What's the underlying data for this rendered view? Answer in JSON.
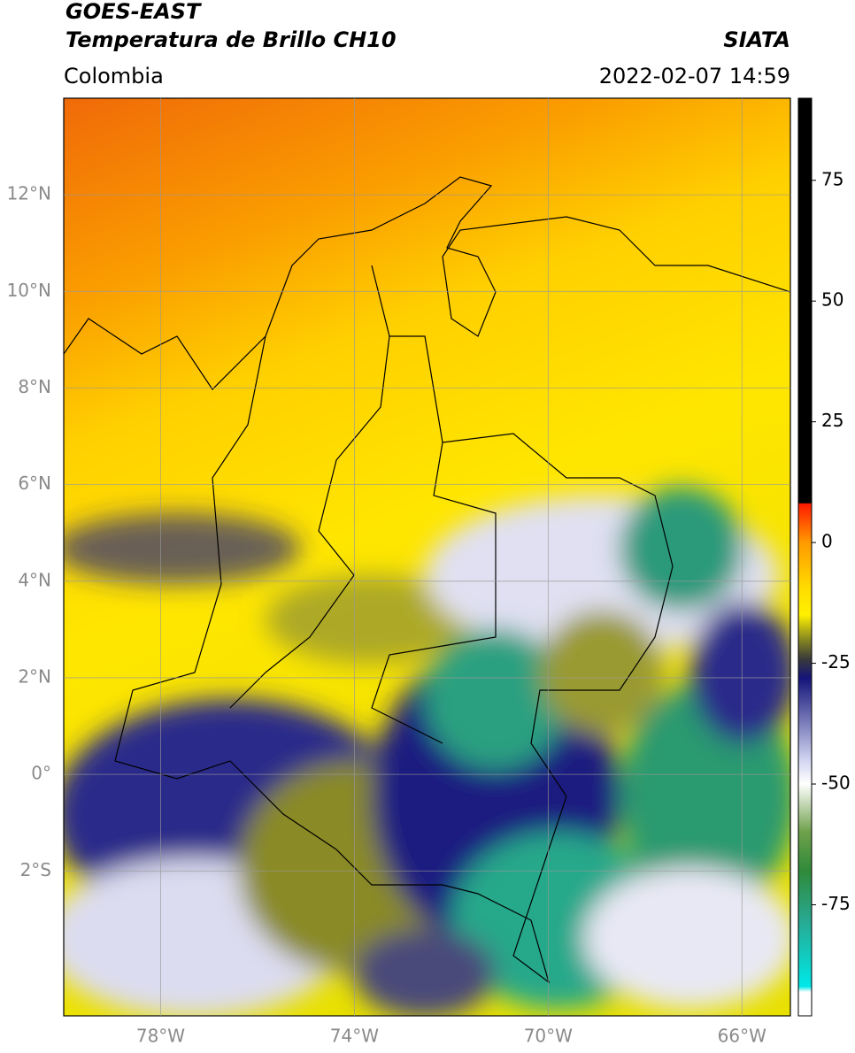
{
  "header": {
    "title": "GOES-EAST",
    "subtitle": "Temperatura de Brillo CH10",
    "region": "Colombia",
    "source": "SIATA",
    "datetime": "2022-02-07 14:59"
  },
  "map": {
    "xlim": [
      -80,
      -65
    ],
    "ylim": [
      -5,
      14
    ],
    "grid": true,
    "xticks": [
      {
        "value": -78,
        "label": "78°W"
      },
      {
        "value": -74,
        "label": "74°W"
      },
      {
        "value": -70,
        "label": "70°W"
      },
      {
        "value": -66,
        "label": "66°W"
      }
    ],
    "yticks": [
      {
        "value": 12,
        "label": "12°N"
      },
      {
        "value": 10,
        "label": "10°N"
      },
      {
        "value": 8,
        "label": "8°N"
      },
      {
        "value": 6,
        "label": "6°N"
      },
      {
        "value": 4,
        "label": "4°N"
      },
      {
        "value": 2,
        "label": "2°N"
      },
      {
        "value": 0,
        "label": "0°"
      },
      {
        "value": -2,
        "label": "2°S"
      }
    ]
  },
  "colorbar": {
    "lim": [
      -98,
      92
    ],
    "ticks": [
      75,
      50,
      25,
      0,
      -25,
      -50,
      -75
    ]
  }
}
